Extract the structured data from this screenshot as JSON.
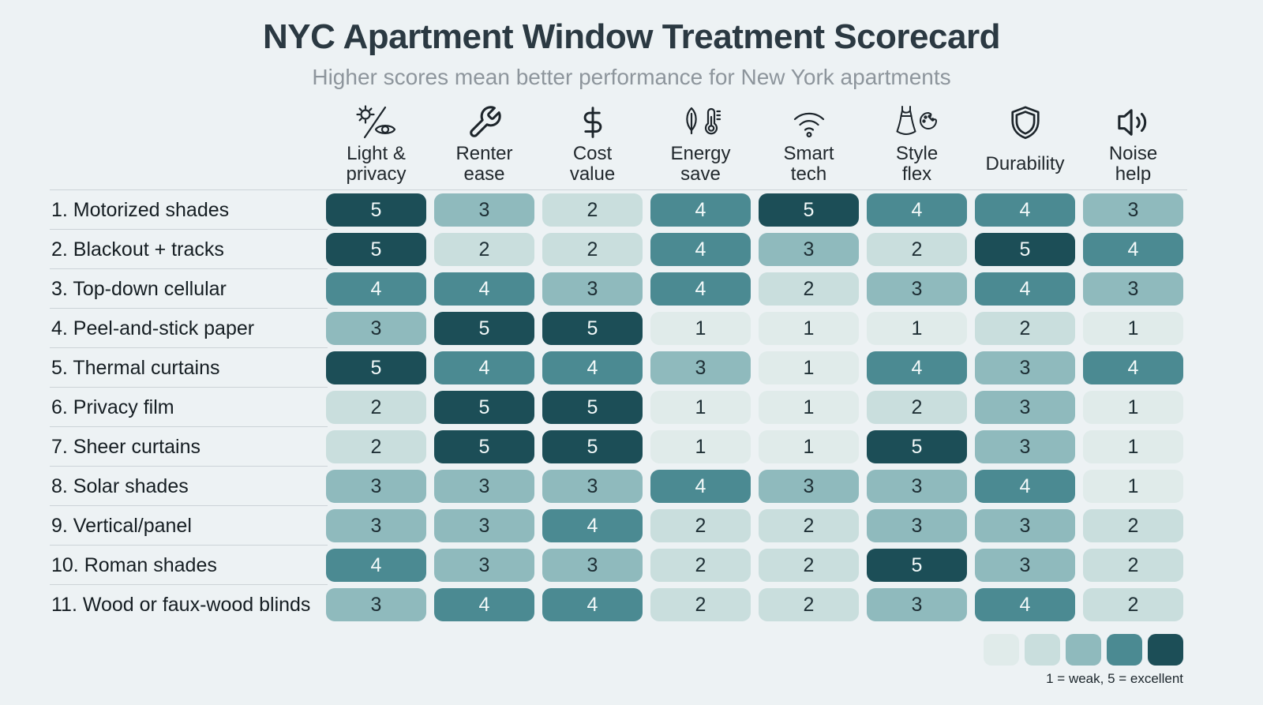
{
  "chart_data": {
    "type": "heatmap",
    "title": "NYC Apartment Window Treatment Scorecard",
    "subtitle": "Higher scores mean better performance for New York apartments",
    "columns": [
      {
        "label": "Light &\nprivacy",
        "icon": "sun-eye-icon"
      },
      {
        "label": "Renter\nease",
        "icon": "wrench-icon"
      },
      {
        "label": "Cost\nvalue",
        "icon": "dollar-icon"
      },
      {
        "label": "Energy\nsave",
        "icon": "leaf-thermometer-icon"
      },
      {
        "label": "Smart\ntech",
        "icon": "wifi-icon"
      },
      {
        "label": "Style\nflex",
        "icon": "dress-palette-icon"
      },
      {
        "label": "Durability",
        "icon": "shield-icon"
      },
      {
        "label": "Noise\nhelp",
        "icon": "speaker-icon"
      }
    ],
    "rows": [
      {
        "label": "1. Motorized shades",
        "scores": [
          5,
          3,
          2,
          4,
          5,
          4,
          4,
          3
        ]
      },
      {
        "label": "2. Blackout + tracks",
        "scores": [
          5,
          2,
          2,
          4,
          3,
          2,
          5,
          4
        ]
      },
      {
        "label": "3. Top-down cellular",
        "scores": [
          4,
          4,
          3,
          4,
          2,
          3,
          4,
          3
        ]
      },
      {
        "label": "4. Peel-and-stick paper",
        "scores": [
          3,
          5,
          5,
          1,
          1,
          1,
          2,
          1
        ]
      },
      {
        "label": "5. Thermal curtains",
        "scores": [
          5,
          4,
          4,
          3,
          1,
          4,
          3,
          4
        ]
      },
      {
        "label": "6. Privacy film",
        "scores": [
          2,
          5,
          5,
          1,
          1,
          2,
          3,
          1
        ]
      },
      {
        "label": "7. Sheer curtains",
        "scores": [
          2,
          5,
          5,
          1,
          1,
          5,
          3,
          1
        ]
      },
      {
        "label": "8. Solar shades",
        "scores": [
          3,
          3,
          3,
          4,
          3,
          3,
          4,
          1
        ]
      },
      {
        "label": "9. Vertical/panel",
        "scores": [
          3,
          3,
          4,
          2,
          2,
          3,
          3,
          2
        ]
      },
      {
        "label": "10. Roman shades",
        "scores": [
          4,
          3,
          3,
          2,
          2,
          5,
          3,
          2
        ]
      },
      {
        "label": "11. Wood or faux-wood blinds",
        "scores": [
          3,
          4,
          4,
          2,
          2,
          3,
          4,
          2
        ]
      }
    ],
    "scale": {
      "min": 1,
      "max": 5,
      "colors": {
        "1": "#e0ebea",
        "2": "#c9dedd",
        "3": "#8fbabd",
        "4": "#4b8a92",
        "5": "#1c4e57"
      },
      "text_dark": "#1e2f35",
      "text_light": "#f2f9f9"
    },
    "legend_caption": "1 = weak, 5 = excellent",
    "legend_swatch_scores": [
      1,
      2,
      3,
      4,
      5
    ]
  }
}
